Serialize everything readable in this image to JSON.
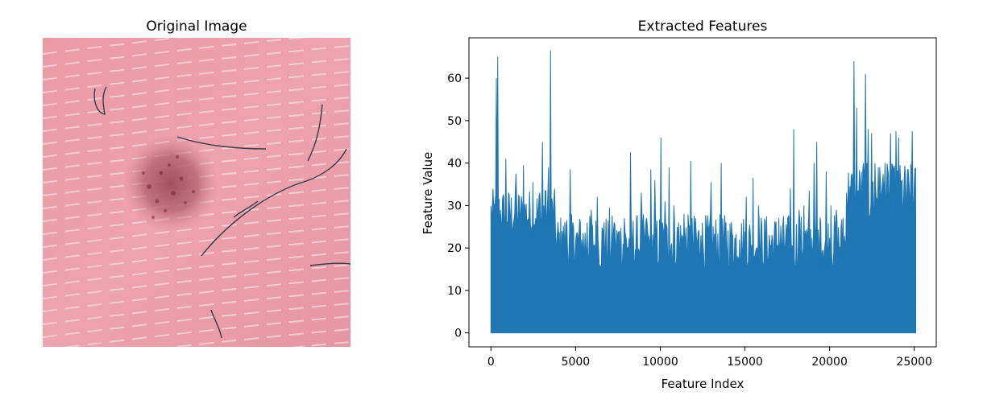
{
  "left_panel": {
    "title": "Original Image",
    "image_subject": "dermoscopic skin lesion",
    "colors": {
      "skin": "#e8a0a8",
      "lesion": "#a85060",
      "hair": "#3a3a48"
    }
  },
  "chart_data": {
    "type": "line",
    "title": "Extracted Features",
    "xlabel": "Feature Index",
    "ylabel": "Feature Value",
    "xlim": [
      -1300,
      26300
    ],
    "ylim": [
      -3.3,
      69.5
    ],
    "xticks": [
      0,
      5000,
      10000,
      15000,
      20000,
      25000
    ],
    "yticks": [
      0,
      10,
      20,
      30,
      40,
      50,
      60
    ],
    "grid": false,
    "line_color": "#1f77b4",
    "num_points": 25088,
    "series": [
      {
        "peaks": [
          [
            0,
            16
          ],
          [
            100,
            24.5
          ],
          [
            250,
            30.5
          ],
          [
            350,
            60
          ],
          [
            420,
            65
          ],
          [
            600,
            26
          ],
          [
            700,
            12
          ],
          [
            900,
            41
          ],
          [
            1100,
            22
          ],
          [
            1300,
            24
          ],
          [
            1500,
            37.5
          ],
          [
            1700,
            20
          ],
          [
            1950,
            39.5
          ],
          [
            2100,
            26
          ],
          [
            2300,
            29
          ],
          [
            2500,
            35.5
          ],
          [
            2700,
            21
          ],
          [
            2900,
            33
          ],
          [
            3050,
            45
          ],
          [
            3200,
            33.5
          ],
          [
            3400,
            39
          ],
          [
            3520,
            66.5
          ],
          [
            3650,
            19
          ],
          [
            3800,
            26.5
          ],
          [
            4000,
            23
          ],
          [
            4200,
            24
          ],
          [
            4500,
            26.5
          ],
          [
            4700,
            38.5
          ],
          [
            4900,
            25
          ],
          [
            5300,
            26
          ],
          [
            5700,
            26
          ],
          [
            5950,
            29
          ],
          [
            6300,
            32
          ],
          [
            6700,
            26
          ],
          [
            7000,
            29.5
          ],
          [
            7300,
            26
          ],
          [
            7600,
            24
          ],
          [
            7900,
            27
          ],
          [
            8250,
            42.5
          ],
          [
            8600,
            26
          ],
          [
            8900,
            33
          ],
          [
            9200,
            27
          ],
          [
            9450,
            38.5
          ],
          [
            9700,
            36
          ],
          [
            10050,
            46
          ],
          [
            10300,
            31
          ],
          [
            10550,
            39
          ],
          [
            10800,
            30
          ],
          [
            11100,
            26
          ],
          [
            11400,
            28
          ],
          [
            11800,
            40.5
          ],
          [
            12100,
            27
          ],
          [
            12400,
            23
          ],
          [
            12700,
            18
          ],
          [
            13000,
            35.5
          ],
          [
            13300,
            26
          ],
          [
            13600,
            40
          ],
          [
            13900,
            26
          ],
          [
            14300,
            23
          ],
          [
            14700,
            22
          ],
          [
            15100,
            32
          ],
          [
            15500,
            36.5
          ],
          [
            15800,
            30
          ],
          [
            16200,
            26
          ],
          [
            16600,
            21
          ],
          [
            17000,
            27
          ],
          [
            17400,
            22
          ],
          [
            17700,
            34
          ],
          [
            17900,
            48
          ],
          [
            18200,
            29
          ],
          [
            18500,
            30
          ],
          [
            18800,
            33.5
          ],
          [
            19100,
            40
          ],
          [
            19250,
            45
          ],
          [
            19500,
            26
          ],
          [
            19800,
            38
          ],
          [
            20100,
            30
          ],
          [
            20400,
            29
          ],
          [
            20800,
            27
          ],
          [
            21000,
            33
          ],
          [
            21200,
            34.5
          ],
          [
            21450,
            64
          ],
          [
            21600,
            53
          ],
          [
            21800,
            36
          ],
          [
            22000,
            40
          ],
          [
            22150,
            61
          ],
          [
            22300,
            48
          ],
          [
            22500,
            47
          ],
          [
            22700,
            40
          ],
          [
            22900,
            39
          ],
          [
            23100,
            33
          ],
          [
            23300,
            40
          ],
          [
            23500,
            34
          ],
          [
            23600,
            47
          ],
          [
            23800,
            38
          ],
          [
            23950,
            47.5
          ],
          [
            24100,
            46
          ],
          [
            24300,
            34
          ],
          [
            24500,
            37
          ],
          [
            24700,
            30
          ],
          [
            24900,
            47.5
          ],
          [
            25087,
            25
          ]
        ]
      }
    ]
  }
}
